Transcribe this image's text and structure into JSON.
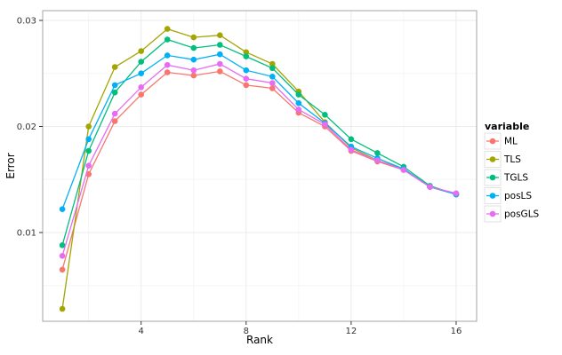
{
  "figure": {
    "background": "#ffffff",
    "panel_background": "#ffffff",
    "panel_border_color": "#a6a6a6",
    "grid_major_color": "#ebebeb",
    "grid_minor_color": "#f5f5f5",
    "tick_color": "#333333",
    "tick_label_color": "#333333",
    "axis_title_color": "#000000"
  },
  "chart_data": {
    "type": "line",
    "title": "",
    "xlabel": "Rank",
    "ylabel": "Error",
    "xlim": [
      0.25,
      16.78
    ],
    "ylim": [
      0.00163,
      0.03092
    ],
    "grid": true,
    "xticks": [
      4,
      8,
      12,
      16
    ],
    "xtick_labels": [
      "4",
      "8",
      "12",
      "16"
    ],
    "x_minor_ticks": [
      2,
      6,
      10,
      14
    ],
    "yticks": [
      0.01,
      0.02,
      0.03
    ],
    "ytick_labels": [
      "0.01",
      "0.02",
      "0.03"
    ],
    "y_minor_ticks": [
      0.005,
      0.015,
      0.025
    ],
    "x": [
      1,
      2,
      3,
      4,
      5,
      6,
      7,
      8,
      9,
      10,
      11,
      12,
      13,
      14,
      15,
      16
    ],
    "series": [
      {
        "name": "ML",
        "color": "#F8766D",
        "values": [
          0.0065,
          0.0155,
          0.0205,
          0.023,
          0.0251,
          0.0248,
          0.0252,
          0.0239,
          0.0236,
          0.0213,
          0.02,
          0.0177,
          0.0167,
          0.0159,
          0.0143,
          0.0136
        ]
      },
      {
        "name": "TLS",
        "color": "#A3A500",
        "values": [
          0.0028,
          0.02,
          0.0256,
          0.0271,
          0.0292,
          0.0284,
          0.0286,
          0.027,
          0.0259,
          0.0233,
          0.0204,
          0.018,
          0.0168,
          0.016,
          0.0143,
          0.0136
        ]
      },
      {
        "name": "TGLS",
        "color": "#00BF7D",
        "values": [
          0.0088,
          0.0177,
          0.0232,
          0.0261,
          0.0282,
          0.0274,
          0.0277,
          0.0266,
          0.0255,
          0.023,
          0.0211,
          0.0188,
          0.0175,
          0.0162,
          0.0144,
          0.0136
        ]
      },
      {
        "name": "posLS",
        "color": "#00B0F6",
        "values": [
          0.0122,
          0.0188,
          0.0239,
          0.025,
          0.0267,
          0.0263,
          0.0268,
          0.0253,
          0.0247,
          0.0222,
          0.0203,
          0.0181,
          0.017,
          0.016,
          0.0143,
          0.0136
        ]
      },
      {
        "name": "posGLS",
        "color": "#E76BF3",
        "values": [
          0.0078,
          0.0163,
          0.0212,
          0.0237,
          0.0258,
          0.0253,
          0.0259,
          0.0245,
          0.0241,
          0.0216,
          0.0202,
          0.0178,
          0.0168,
          0.0159,
          0.0143,
          0.0137
        ]
      }
    ],
    "legend": {
      "title": "variable",
      "position": "right",
      "entries": [
        "ML",
        "TLS",
        "TGLS",
        "posLS",
        "posGLS"
      ],
      "key_background": "#ffffff",
      "key_border_color": "#e2e2e2"
    }
  }
}
